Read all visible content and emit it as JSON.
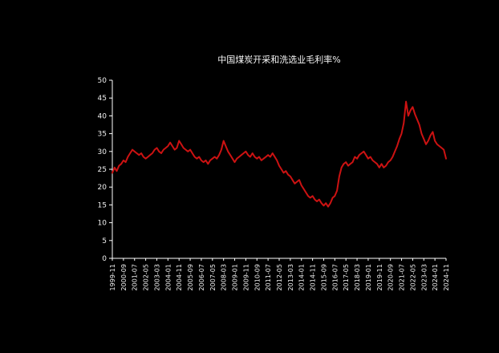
{
  "page": {
    "background": "#000000"
  },
  "chart_data": {
    "type": "line",
    "title": "中国煤炭开采和洗选业毛利率%",
    "xlabel": "",
    "ylabel": "",
    "ylim": [
      0,
      50
    ],
    "y_tick_step": 5,
    "grid": false,
    "legend_position": "none",
    "line_color": "#cc1212",
    "axis_color": "#ffffff",
    "text_color": "#f0f0f0",
    "background_color": "#000000",
    "x_tick_labels": [
      "1999-11",
      "2000-09",
      "2001-07",
      "2002-05",
      "2003-03",
      "2004-01",
      "2004-11",
      "2005-09",
      "2006-07",
      "2007-05",
      "2008-03",
      "2009-01",
      "2009-11",
      "2010-09",
      "2011-07",
      "2012-05",
      "2013-03",
      "2014-01",
      "2014-11",
      "2015-09",
      "2016-07",
      "2017-05",
      "2018-03",
      "2019-01",
      "2019-11",
      "2020-09",
      "2021-07",
      "2022-05",
      "2023-03",
      "2024-01",
      "2024-11"
    ],
    "x_start": "1999-11",
    "x_end": "2024-11",
    "x_step_months": 2,
    "values": [
      24,
      25.5,
      24.5,
      26,
      26.5,
      27.5,
      27,
      28.5,
      29.5,
      30.5,
      30,
      29.5,
      29,
      29.5,
      28.5,
      28,
      28.5,
      29,
      29.5,
      30.5,
      31,
      30,
      29.5,
      30.5,
      31,
      31.5,
      32.5,
      31.5,
      30.5,
      31,
      33,
      32,
      31,
      30.5,
      30,
      30.5,
      29.5,
      28.5,
      28,
      28.5,
      27.5,
      27,
      27.5,
      26.5,
      27.5,
      28,
      28.5,
      28,
      29,
      30.5,
      33,
      31.5,
      30,
      29,
      28,
      27,
      28,
      28.5,
      29,
      29.5,
      30,
      29,
      28.5,
      29.5,
      28.5,
      28,
      28.5,
      27.5,
      28,
      28.5,
      29,
      28.5,
      29.5,
      28.5,
      27.5,
      26,
      25,
      24,
      24.5,
      23.5,
      23,
      22,
      21,
      21.5,
      22,
      20.5,
      19.5,
      18.5,
      17.5,
      17,
      17.5,
      16.5,
      16,
      16.5,
      15.5,
      14.8,
      15.5,
      14.5,
      15.5,
      17,
      17.5,
      19,
      23,
      25.5,
      26.5,
      27,
      26,
      26.5,
      27,
      28.5,
      28,
      29,
      29.5,
      30,
      29,
      28,
      28.5,
      27.5,
      27,
      26.5,
      25.5,
      26.5,
      25.5,
      26,
      27,
      27.5,
      28.5,
      30,
      31.5,
      33.5,
      35,
      38,
      44,
      40,
      41.5,
      42.5,
      40.5,
      39,
      37.5,
      35,
      33.5,
      32,
      33,
      34.5,
      35.5,
      33,
      32,
      31.5,
      31,
      30.5,
      28
    ]
  }
}
